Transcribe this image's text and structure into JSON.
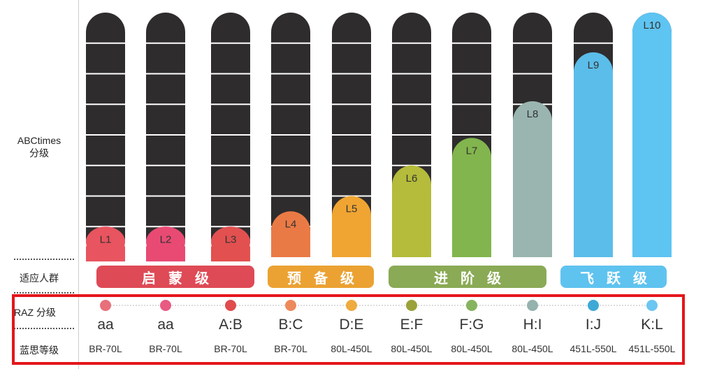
{
  "labels": {
    "abctimes_line1": "ABCtimes",
    "abctimes_line2": "分级",
    "audience": "适应人群",
    "raz": "RAZ 分级",
    "lexile": "蓝思等级"
  },
  "groups": [
    {
      "label": "启蒙级",
      "color": "#de4a55"
    },
    {
      "label": "预备级",
      "color": "#eba232"
    },
    {
      "label": "进阶级",
      "color": "#8aaa55"
    },
    {
      "label": "飞跃级",
      "color": "#5fc3ef"
    }
  ],
  "chart_data": {
    "type": "bar",
    "categories": [
      "L1",
      "L2",
      "L3",
      "L4",
      "L5",
      "L6",
      "L7",
      "L8",
      "L9",
      "L10"
    ],
    "values": [
      1,
      1,
      1,
      1.5,
      2,
      3,
      3.9,
      5.1,
      6.7,
      8
    ],
    "ylim": [
      0,
      8
    ],
    "grid": true,
    "bar_colors": [
      "#e8545f",
      "#e84a73",
      "#e25050",
      "#ea7a45",
      "#f0a532",
      "#b5bb3a",
      "#82b54d",
      "#9ab5b0",
      "#5bbde9",
      "#5ec4f2"
    ],
    "track_color": "#2f2c2d",
    "raz_levels": [
      "aa",
      "aa",
      "A:B",
      "B:C",
      "D:E",
      "E:F",
      "F:G",
      "H:I",
      "I:J",
      "K:L"
    ],
    "lexile_levels": [
      "BR-70L",
      "BR-70L",
      "BR-70L",
      "BR-70L",
      "80L-450L",
      "80L-450L",
      "80L-450L",
      "80L-450L",
      "451L-550L",
      "451L-550L"
    ],
    "dot_colors": [
      "#e8707a",
      "#e85a82",
      "#e04b4b",
      "#ec8a5c",
      "#efab3f",
      "#9ba23a",
      "#86b35d",
      "#94b2ae",
      "#3fa9d6",
      "#6cc6f2"
    ]
  }
}
